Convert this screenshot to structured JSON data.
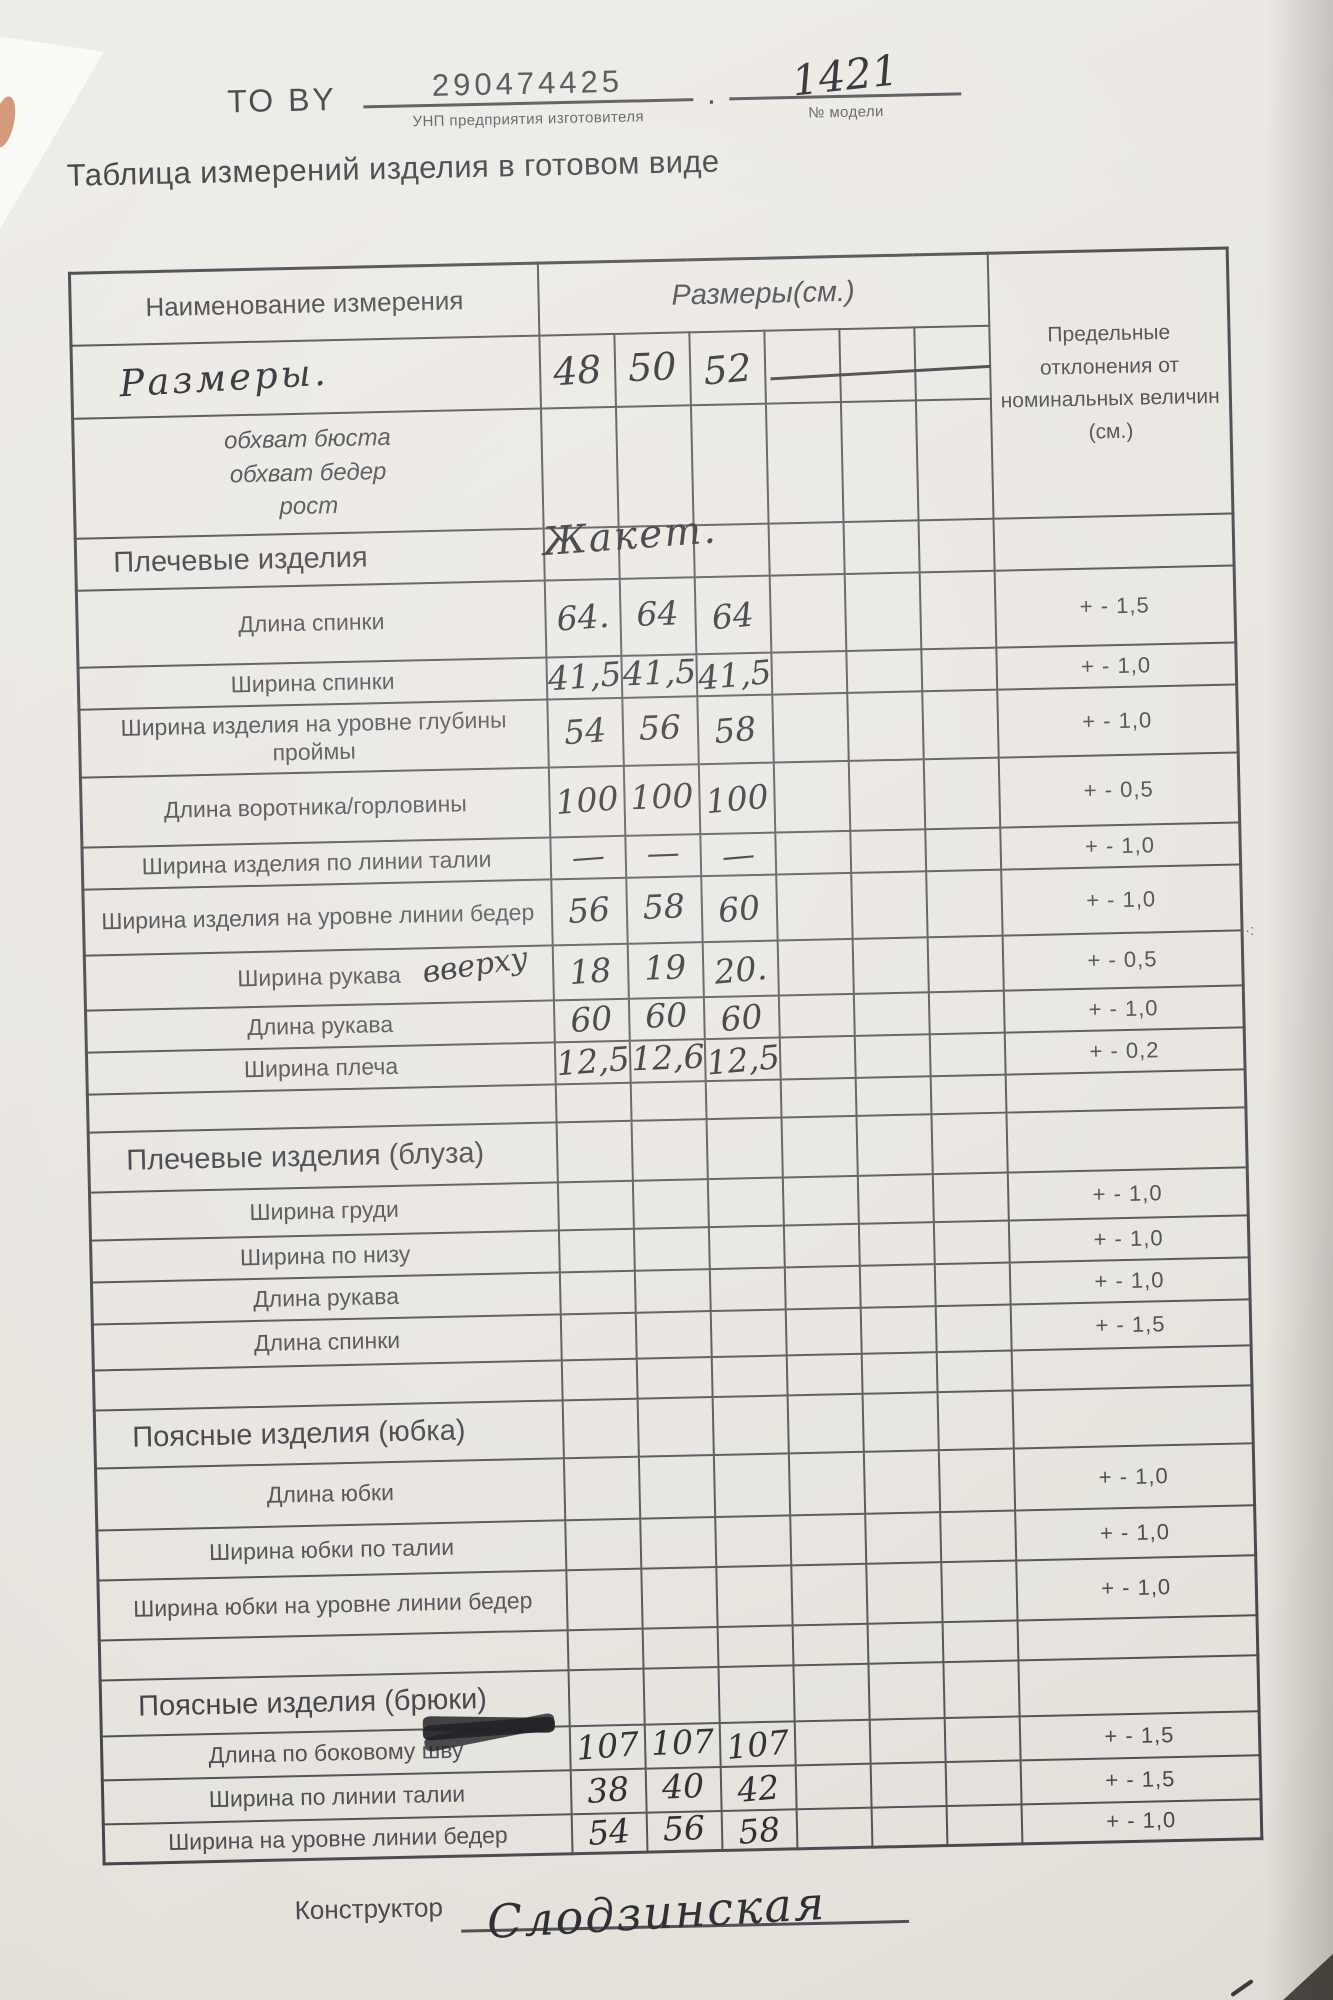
{
  "header": {
    "to_by_label": "ТО BY",
    "unp_value": "290474425",
    "unp_caption": "УНП предприятия изготовителя",
    "separator": ".",
    "model_value": "1421",
    "model_caption": "№ модели"
  },
  "title": "Таблица измерений изделия в готовом виде",
  "table": {
    "name_header": "Наименование измерения",
    "sizes_header": "Размеры(см.)",
    "tolerance_header": "Предельные отклонения от номинальных величин (см.)",
    "rows": [
      {
        "type": "sizes",
        "hw": true,
        "label": "Размеры.",
        "values": [
          "48",
          "50",
          "52",
          "",
          "",
          ""
        ]
      },
      {
        "type": "info",
        "lines": [
          "обхват бюста",
          "обхват бедер",
          "рост"
        ]
      },
      {
        "type": "section",
        "label": "Плечевые изделия",
        "note": "Жакет."
      },
      {
        "type": "data",
        "label": "Длина спинки",
        "values": [
          "64.",
          "64",
          "64"
        ],
        "tolerance": "+ - 1,5"
      },
      {
        "type": "data",
        "label": "Ширина спинки",
        "values": [
          "41,5",
          "41,5",
          "41,5"
        ],
        "tolerance": "+ - 1,0"
      },
      {
        "type": "data",
        "label": "Ширина изделия на уровне глубины проймы",
        "values": [
          "54",
          "56",
          "58"
        ],
        "tolerance": "+ - 1,0"
      },
      {
        "type": "data",
        "label": "Длина воротника/горловины",
        "values": [
          "100",
          "100",
          "100"
        ],
        "tolerance": "+ - 0,5"
      },
      {
        "type": "data",
        "label": "Ширина изделия по линии талии",
        "values": [
          "—",
          "—",
          "—"
        ],
        "tolerance": "+ - 1,0"
      },
      {
        "type": "data",
        "label": "Ширина изделия на уровне линии бедер",
        "values": [
          "56",
          "58",
          "60"
        ],
        "tolerance": "+ - 1,0"
      },
      {
        "type": "data",
        "label": "Ширина рукава",
        "note": "вверху",
        "values": [
          "18",
          "19",
          "20."
        ],
        "tolerance": "+ - 0,5"
      },
      {
        "type": "data",
        "label": "Длина рукава",
        "values": [
          "60",
          "60",
          "60"
        ],
        "tolerance": "+ - 1,0"
      },
      {
        "type": "data",
        "label": "Ширина плеча",
        "values": [
          "12,5",
          "12,6",
          "12,5"
        ],
        "tolerance": "+ - 0,2"
      },
      {
        "type": "empty"
      },
      {
        "type": "section",
        "label": "Плечевые изделия (блуза)"
      },
      {
        "type": "data",
        "label": "Ширина груди",
        "tolerance": "+ - 1,0"
      },
      {
        "type": "data",
        "label": "Ширина по низу",
        "tolerance": "+ - 1,0"
      },
      {
        "type": "data",
        "label": "Длина рукава",
        "tolerance": "+ - 1,0"
      },
      {
        "type": "data",
        "label": "Длина спинки",
        "tolerance": "+ - 1,5"
      },
      {
        "type": "empty"
      },
      {
        "type": "section",
        "label": "Поясные изделия (юбка)"
      },
      {
        "type": "data",
        "label": "Длина юбки",
        "tolerance": "+ - 1,0"
      },
      {
        "type": "data",
        "label": "Ширина юбки по талии",
        "tolerance": "+ - 1,0"
      },
      {
        "type": "data",
        "label": "Ширина юбки на уровне линии бедер",
        "tolerance": "+ - 1,0"
      },
      {
        "type": "empty"
      },
      {
        "type": "section",
        "label": "Поясные изделия (брюки)"
      },
      {
        "type": "data",
        "label": "Длина по боковому шву",
        "scribble": true,
        "values": [
          "107",
          "107",
          "107"
        ],
        "tolerance": "+ - 1,5"
      },
      {
        "type": "data",
        "label": "Ширина по линии талии",
        "values": [
          "38",
          "40",
          "42"
        ],
        "tolerance": "+ - 1,5"
      },
      {
        "type": "data",
        "label": "Ширина на уровне линии бедер",
        "values": [
          "54",
          "56",
          "58"
        ],
        "tolerance": "+ - 1,0"
      }
    ]
  },
  "footer": {
    "label": "Конструктор",
    "signature": "Слодзинская"
  }
}
